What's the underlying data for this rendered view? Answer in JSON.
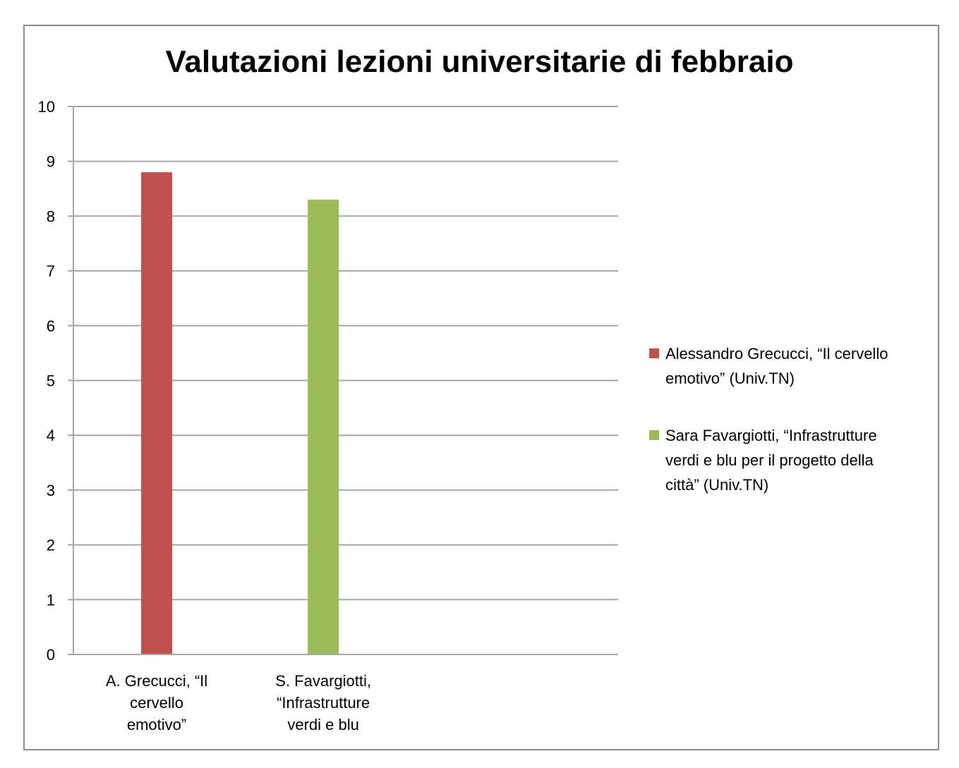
{
  "chart_data": {
    "type": "bar",
    "title": "Valutazioni lezioni universitarie di febbraio",
    "xlabel": "",
    "ylabel": "",
    "ylim": [
      0,
      10
    ],
    "yticks": [
      "0",
      "1",
      "2",
      "3",
      "4",
      "5",
      "6",
      "7",
      "8",
      "9",
      "10"
    ],
    "categories": [
      "A. Grecucci, “Il cervello emotivo”",
      "S. Favargiotti, “Infrastrutture verdi e blu"
    ],
    "category_lines": [
      [
        "A. Grecucci, “Il",
        "cervello",
        "emotivo”"
      ],
      [
        "S. Favargiotti,",
        "“Infrastrutture",
        "verdi e blu"
      ]
    ],
    "series": [
      {
        "name": "Alessandro Grecucci, “Il cervello emotivo” (Univ.TN)",
        "name_lines": [
          "Alessandro Grecucci, “Il cervello",
          "emotivo” (Univ.TN)"
        ],
        "values": [
          8.8,
          null
        ],
        "color": "#c0504d"
      },
      {
        "name": "Sara Favargiotti, “Infrastrutture verdi e blu per il progetto della città” (Univ.TN)",
        "name_lines": [
          "Sara Favargiotti, “Infrastrutture",
          "verdi e blu per il progetto della",
          "città” (Univ.TN)"
        ],
        "values": [
          null,
          8.3
        ],
        "color": "#9bbb59"
      }
    ],
    "grid": true,
    "legend_position": "right",
    "gridline_color": "#a6a6a6"
  }
}
